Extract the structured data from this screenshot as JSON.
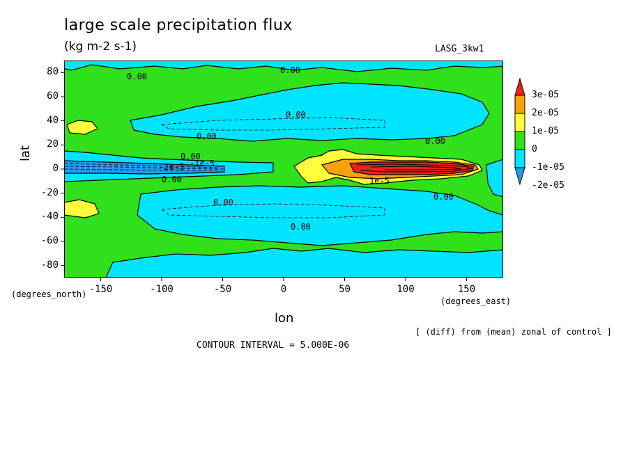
{
  "title": "large scale precipitation flux",
  "units": "(kg m-2 s-1)",
  "run_label": "LASG_3kw1",
  "footer_note": "[ (diff) from (mean) zonal of control ]",
  "contour_interval": "CONTOUR INTERVAL = 5.000E-06",
  "colors": {
    "red": "#e8231c",
    "orange": "#f7a10b",
    "yellow": "#ffff3b",
    "green": "#2fe01b",
    "cyan": "#00e4ff",
    "blue": "#219cf1"
  },
  "chart_data": {
    "type": "filled-contour map",
    "xlabel": "lon",
    "ylabel": "lat",
    "x_units": "(degrees_east)",
    "y_units": "(degrees_north)",
    "xlim": [
      -180,
      180
    ],
    "ylim": [
      -90,
      90
    ],
    "x_ticks": [
      -150,
      -100,
      -50,
      0,
      50,
      100,
      150
    ],
    "y_ticks": [
      80,
      60,
      40,
      20,
      0,
      -20,
      -40,
      -60,
      -80
    ],
    "colorbar": {
      "labels": [
        "3e-05",
        "2e-05",
        "1e-05",
        "0",
        "-1e-05",
        "-2e-05"
      ],
      "levels": [
        3e-05,
        2e-05,
        1e-05,
        0,
        -1e-05,
        -2e-05
      ]
    },
    "contour_labels": [
      "0.00",
      "0.00",
      "0.00",
      "0.00",
      "0.00",
      "0.00",
      "0.00",
      "0.00",
      "0.00",
      "0.00",
      "-2e-5",
      "-1e-5",
      "1e-5"
    ],
    "regions": [
      {
        "name": "northern subtropics negative band",
        "lon": [
          -130,
          165
        ],
        "lat": [
          15,
          55
        ],
        "value": -1e-05
      },
      {
        "name": "southern subtropics negative band",
        "lon": [
          -120,
          175
        ],
        "lat": [
          -55,
          -15
        ],
        "value": -1e-05
      },
      {
        "name": "polar north negative band",
        "lon": [
          -160,
          180
        ],
        "lat": [
          70,
          90
        ],
        "value": -1e-05
      },
      {
        "name": "polar south negative band",
        "lon": [
          -120,
          180
        ],
        "lat": [
          -90,
          -65
        ],
        "value": -1e-05
      },
      {
        "name": "equatorial western negative tongue",
        "lon": [
          -180,
          -20
        ],
        "lat": [
          -8,
          8
        ],
        "value": -2e-05
      },
      {
        "name": "equatorial positive tongue",
        "lon": [
          10,
          160
        ],
        "lat": [
          -10,
          12
        ],
        "value": 3e-05
      }
    ]
  }
}
